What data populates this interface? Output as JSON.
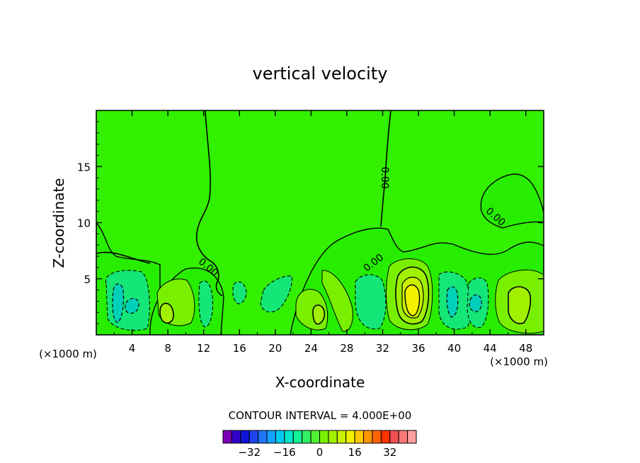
{
  "chart_data": {
    "type": "contour",
    "title": "vertical velocity",
    "xlabel": "X-coordinate",
    "ylabel": "Z-coordinate",
    "x_unit_left": "(×1000 m)",
    "x_unit_right": "(×1000 m)",
    "xlim": [
      0,
      50
    ],
    "ylim": [
      0,
      20
    ],
    "x_ticks": [
      4,
      8,
      12,
      16,
      20,
      24,
      28,
      32,
      36,
      40,
      44,
      48
    ],
    "y_ticks": [
      5,
      10,
      15
    ],
    "contour_interval_label": "CONTOUR INTERVAL = 4.000E+00",
    "contour_labels": [
      {
        "text": "0.00",
        "x": 12.5,
        "y": 6.0,
        "angle": 40
      },
      {
        "text": "0.00",
        "x": 31.0,
        "y": 6.4,
        "angle": -38
      },
      {
        "text": "0.00",
        "x": 32.2,
        "y": 14.0,
        "angle": 90
      },
      {
        "text": "0.00",
        "x": 44.6,
        "y": 10.5,
        "angle": 42
      }
    ],
    "colorbar": {
      "colors": [
        "#7b00b4",
        "#3300cc",
        "#0f14d6",
        "#1e46f0",
        "#1e78ff",
        "#14a0ff",
        "#00c8f0",
        "#00e6c8",
        "#14f096",
        "#32f064",
        "#50f032",
        "#78f000",
        "#a0f000",
        "#c8f000",
        "#f0f000",
        "#ffc800",
        "#ff9600",
        "#ff6400",
        "#ff3200",
        "#f05050",
        "#ff7878",
        "#ff9ea0"
      ],
      "tick_labels": [
        "−32",
        "−16",
        "0",
        "16",
        "32"
      ],
      "tick_values": [
        -32,
        -16,
        0,
        16,
        32
      ],
      "range": [
        -44,
        44
      ]
    },
    "background_color": "#32f000",
    "features": [
      {
        "name": "updraft",
        "x": 35.0,
        "z": 3.5,
        "peak": 16
      },
      {
        "name": "updraft",
        "x": 46.5,
        "z": 3.0,
        "peak": 8
      },
      {
        "name": "updraft",
        "x": 7.8,
        "z": 2.0,
        "peak": 8
      },
      {
        "name": "updraft",
        "x": 24.6,
        "z": 1.8,
        "peak": 8
      },
      {
        "name": "downdraft",
        "x": 2.0,
        "z": 3.0,
        "peak": -8
      },
      {
        "name": "downdraft",
        "x": 3.8,
        "z": 2.8,
        "peak": -8
      },
      {
        "name": "downdraft",
        "x": 39.8,
        "z": 3.0,
        "peak": -8
      },
      {
        "name": "downdraft",
        "x": 42.6,
        "z": 3.0,
        "peak": -8
      },
      {
        "name": "downdraft",
        "x": 11.6,
        "z": 2.8,
        "peak": -4
      },
      {
        "name": "downdraft",
        "x": 18.8,
        "z": 3.6,
        "peak": -4
      },
      {
        "name": "downdraft",
        "x": 30.0,
        "z": 2.8,
        "peak": -4
      }
    ]
  }
}
